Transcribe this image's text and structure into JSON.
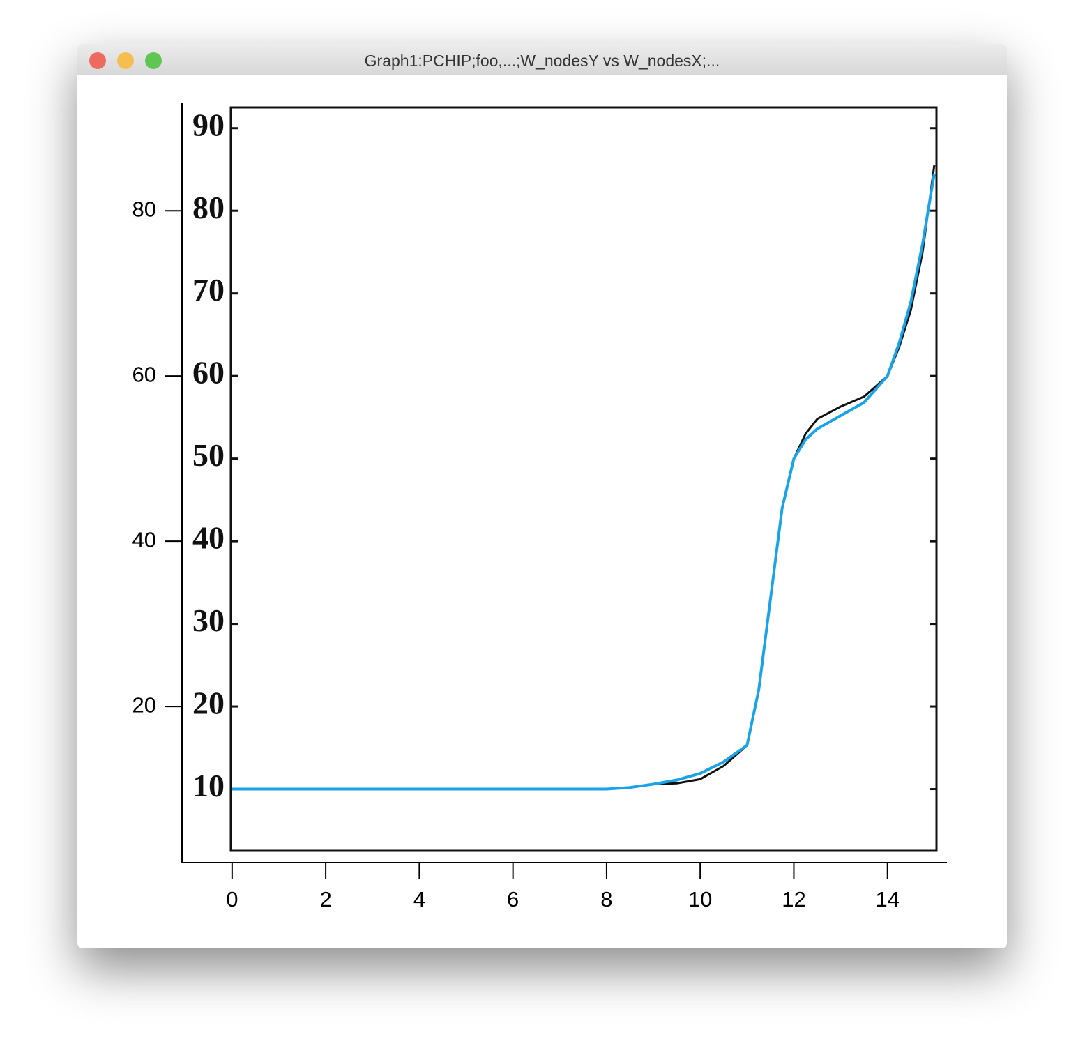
{
  "window": {
    "title": "Graph1:PCHIP;foo,...;W_nodesY vs W_nodesX;..."
  },
  "chart_data": {
    "type": "line",
    "x": [
      0,
      1,
      2,
      3,
      4,
      5,
      6,
      7,
      8,
      8.5,
      9,
      9.5,
      10,
      10.5,
      11,
      11.25,
      11.5,
      11.75,
      12,
      12.25,
      12.5,
      13,
      13.5,
      14,
      14.25,
      14.5,
      14.75,
      15
    ],
    "series": [
      {
        "color": "#111111",
        "values": [
          10,
          10,
          10,
          10,
          10,
          10,
          10,
          10,
          10,
          10.2,
          10.6,
          10.7,
          11.2,
          12.8,
          15.3,
          22,
          33,
          44,
          50,
          53,
          54.8,
          56.3,
          57.5,
          60,
          63.5,
          68,
          75,
          85.5
        ]
      },
      {
        "color": "#1aa3e8",
        "values": [
          10,
          10,
          10,
          10,
          10,
          10,
          10,
          10,
          10,
          10.2,
          10.6,
          11.1,
          11.9,
          13.3,
          15.3,
          22,
          33,
          44,
          50,
          52.3,
          53.6,
          55.2,
          56.8,
          60,
          64,
          69,
          76,
          84.5
        ]
      }
    ],
    "xlim": [
      -1.07,
      15.27
    ],
    "xticks": [
      0,
      2,
      4,
      6,
      8,
      10,
      12,
      14
    ],
    "ylim": [
      1.1,
      93.1
    ],
    "yticks": [
      20,
      40,
      60,
      80
    ],
    "y2lim": [
      1.1,
      93.1
    ],
    "y2ticks": [
      10,
      20,
      30,
      40,
      50,
      60,
      70,
      80,
      90
    ]
  }
}
